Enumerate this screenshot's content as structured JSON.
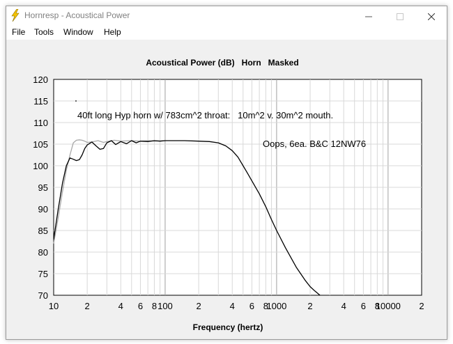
{
  "window": {
    "title": "Hornresp - Acoustical Power",
    "accent_color": "#f5c400"
  },
  "menu": {
    "items": [
      {
        "label": "File"
      },
      {
        "label": "Tools"
      },
      {
        "label": "Window"
      },
      {
        "label": "Help"
      }
    ]
  },
  "chart": {
    "title": "Acoustical Power (dB)   Horn   Masked",
    "xlabel": "Frequency (hertz)",
    "annotation_main": "40ft long Hyp horn w/ 783cm^2 throat:   10m^2 v. 30m^2 mouth.",
    "annotation_drivers": "Oops, 6ea. B&C 12NW76"
  },
  "chart_data": {
    "type": "line",
    "title": "Acoustical Power (dB)   Horn   Masked",
    "xlabel": "Frequency (hertz)",
    "ylabel": "",
    "xscale": "log",
    "xlim": [
      10,
      20000
    ],
    "ylim": [
      70,
      120
    ],
    "grid": true,
    "y_ticks": [
      70,
      75,
      80,
      85,
      90,
      95,
      100,
      105,
      110,
      115,
      120
    ],
    "x_tick_labels": [
      {
        "value": 10,
        "label": "10"
      },
      {
        "value": 20,
        "label": "2"
      },
      {
        "value": 40,
        "label": "4"
      },
      {
        "value": 60,
        "label": "6"
      },
      {
        "value": 80,
        "label": "8"
      },
      {
        "value": 100,
        "label": "100"
      },
      {
        "value": 200,
        "label": "2"
      },
      {
        "value": 400,
        "label": "4"
      },
      {
        "value": 600,
        "label": "6"
      },
      {
        "value": 800,
        "label": "8"
      },
      {
        "value": 1000,
        "label": "1000"
      },
      {
        "value": 2000,
        "label": "2"
      },
      {
        "value": 4000,
        "label": "4"
      },
      {
        "value": 6000,
        "label": "6"
      },
      {
        "value": 8000,
        "label": "8"
      },
      {
        "value": 10000,
        "label": "10000"
      },
      {
        "value": 20000,
        "label": "2"
      }
    ],
    "series": [
      {
        "color": "#000000",
        "x": [
          10,
          11,
          12,
          13,
          14,
          15,
          16,
          17,
          18,
          19,
          20,
          22,
          24,
          26,
          28,
          30,
          33,
          36,
          40,
          45,
          50,
          55,
          60,
          70,
          80,
          90,
          100,
          150,
          200,
          250,
          300,
          350,
          400,
          450,
          500,
          550,
          600,
          700,
          800,
          900,
          1000,
          1200,
          1500,
          1800,
          2000,
          2200,
          2450
        ],
        "y": [
          83,
          90,
          96,
          100,
          101.8,
          101.5,
          101.2,
          101.4,
          102.5,
          104,
          104.8,
          105.5,
          104.6,
          103.8,
          104,
          105.3,
          105.8,
          104.9,
          105.6,
          105.1,
          105.8,
          105.3,
          105.7,
          105.6,
          105.8,
          105.7,
          105.8,
          105.8,
          105.7,
          105.6,
          105.3,
          104.6,
          103.5,
          102,
          100,
          98.2,
          96.5,
          93.5,
          90.5,
          87.5,
          85,
          81,
          76.5,
          73.5,
          72,
          71,
          70
        ]
      },
      {
        "color": "#a8a8a8",
        "x": [
          10,
          11,
          12,
          13,
          14,
          15,
          16,
          17,
          18,
          19,
          20,
          22,
          25,
          28,
          30,
          35,
          40,
          50,
          60,
          70,
          80,
          100
        ],
        "y": [
          82,
          88,
          94,
          99,
          102.5,
          105.3,
          105.9,
          106,
          105.9,
          105.7,
          105.4,
          105.5,
          105.8,
          105.4,
          105.6,
          105.9,
          105.7,
          105.8,
          105.7,
          105.8,
          105.7,
          105.8
        ]
      }
    ]
  }
}
